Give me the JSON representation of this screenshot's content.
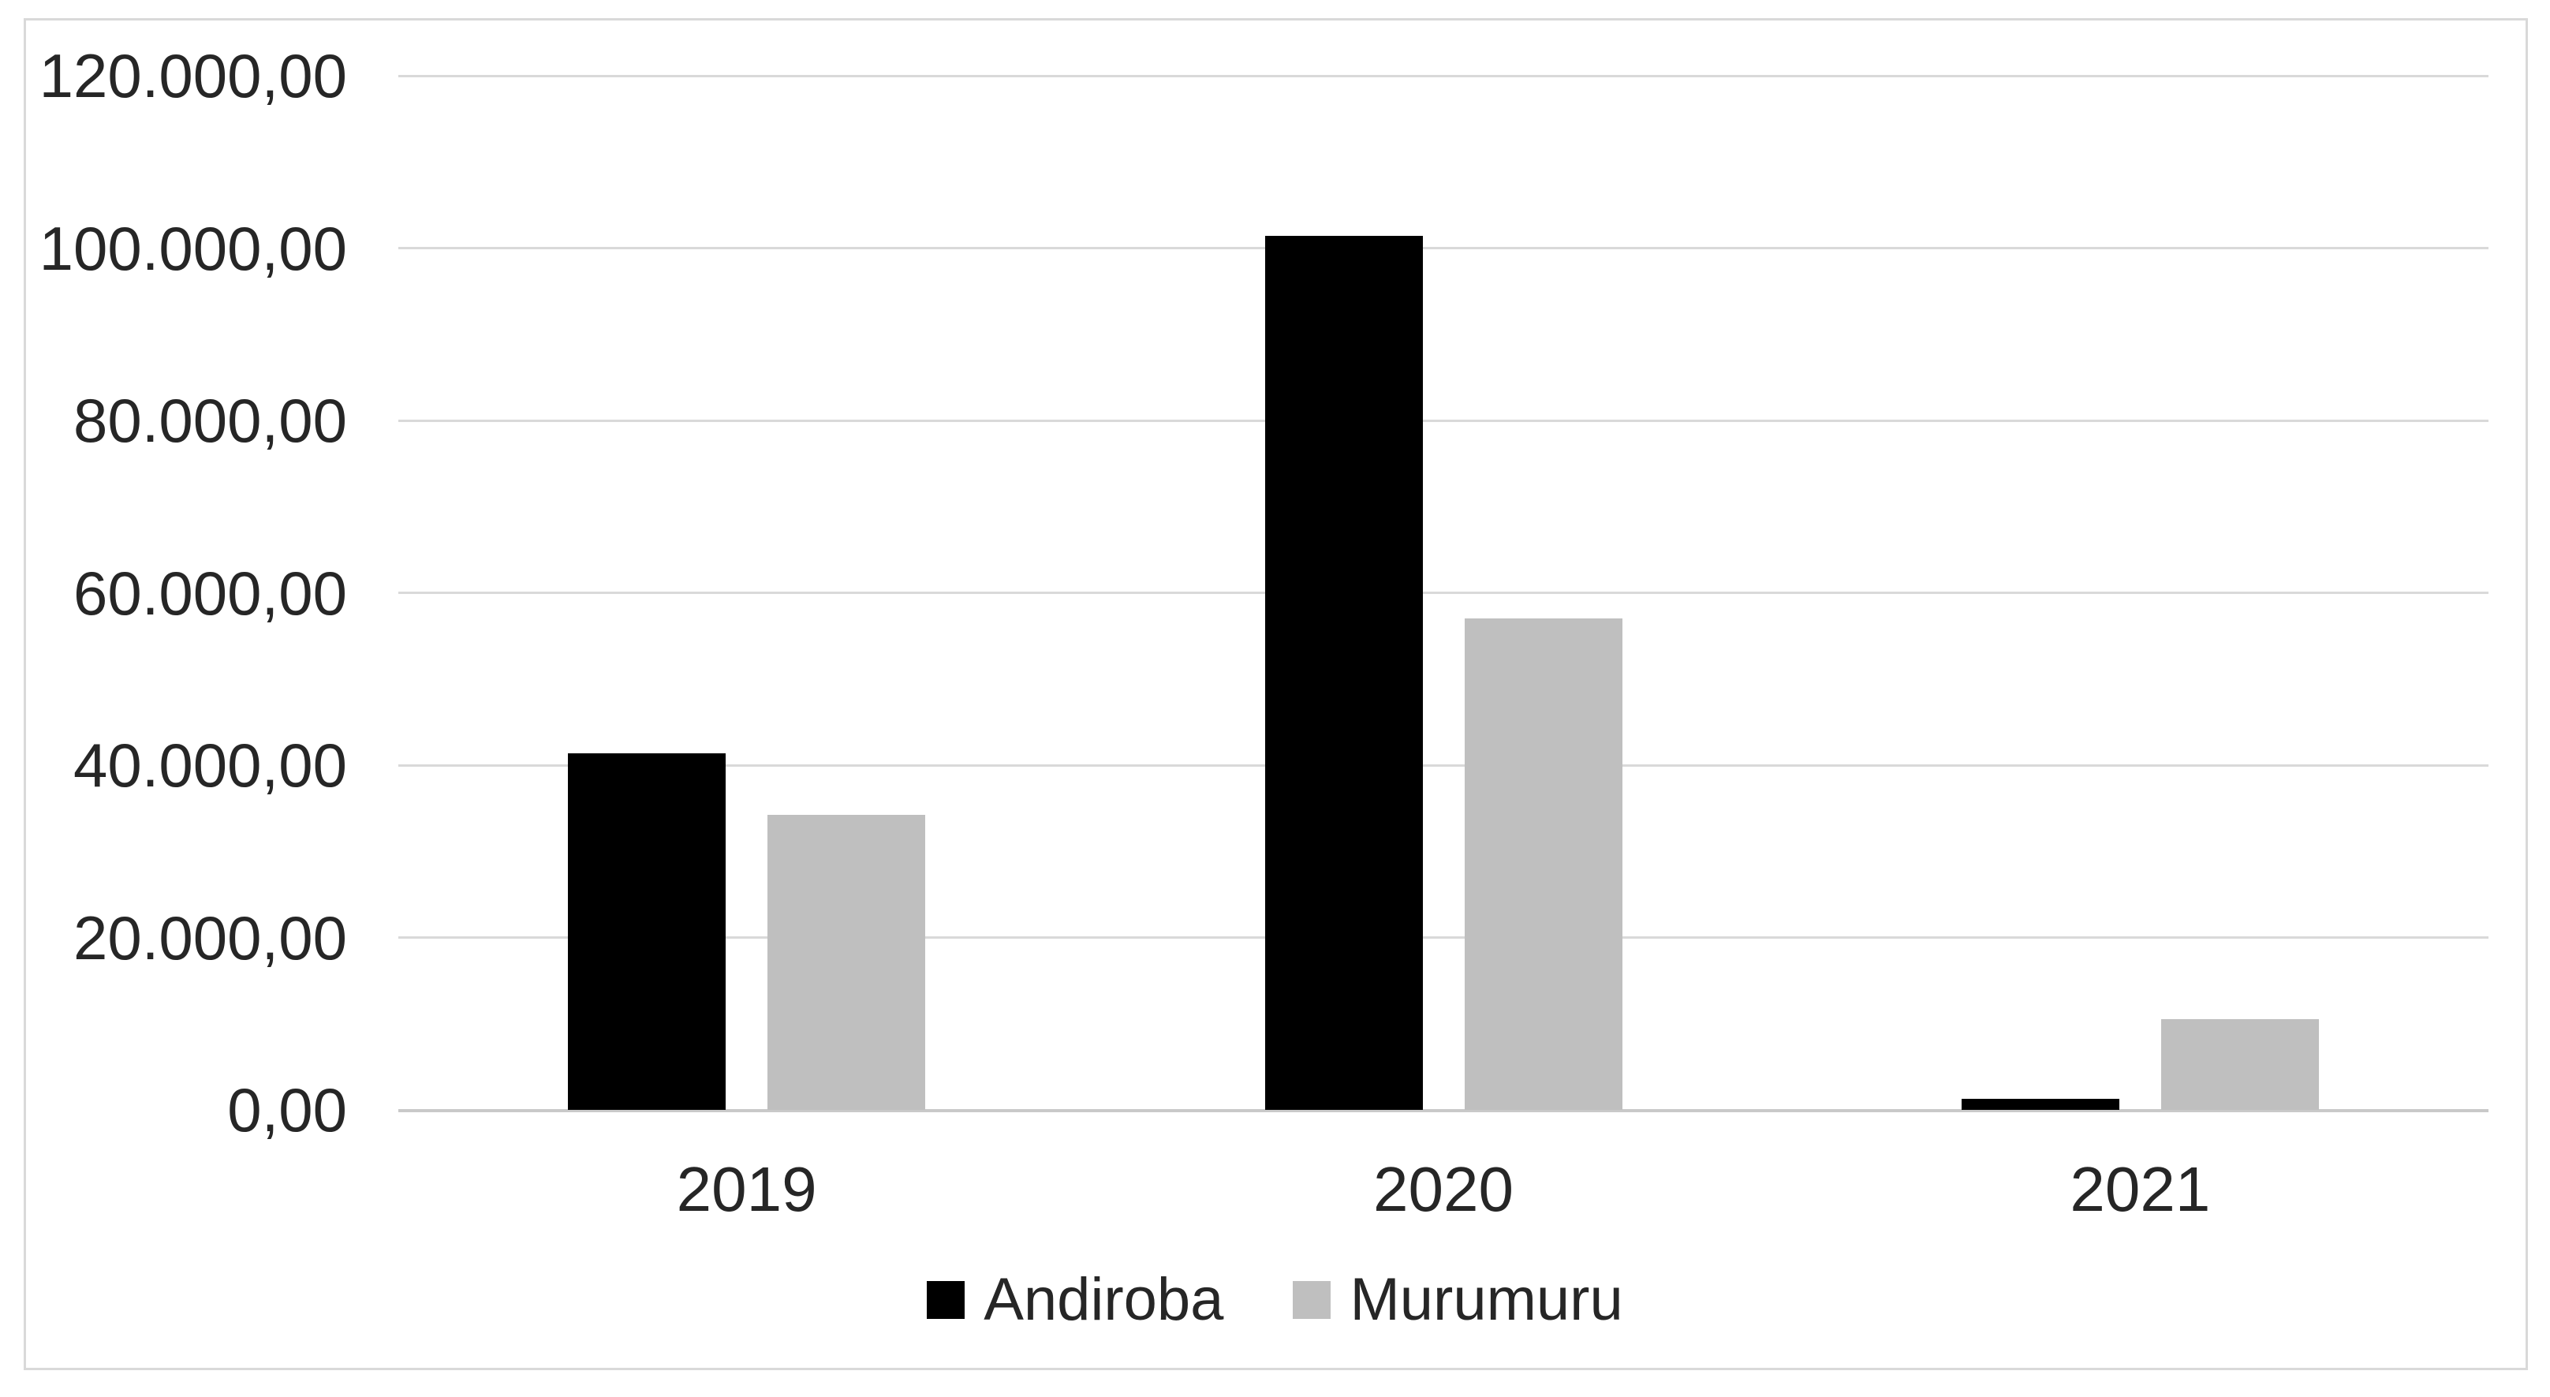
{
  "chart_data": {
    "type": "bar",
    "title": "",
    "xlabel": "",
    "ylabel": "",
    "categories": [
      "2019",
      "2020",
      "2021"
    ],
    "series": [
      {
        "name": "Andiroba",
        "color": "#000000",
        "values": [
          41400,
          101400,
          1300
        ]
      },
      {
        "name": "Murumuru",
        "color": "#BFBFBF",
        "values": [
          34200,
          57000,
          10500
        ]
      }
    ],
    "y_ticks": [
      {
        "value": 120000,
        "label": "120.000,00"
      },
      {
        "value": 100000,
        "label": "100.000,00"
      },
      {
        "value": 80000,
        "label": "80.000,00"
      },
      {
        "value": 60000,
        "label": "60.000,00"
      },
      {
        "value": 40000,
        "label": "40.000,00"
      },
      {
        "value": 20000,
        "label": "20.000,00"
      },
      {
        "value": 0,
        "label": "0,00"
      }
    ],
    "ylim": [
      0,
      120000
    ],
    "grid": true,
    "legend_position": "bottom",
    "number_format": "pt-BR"
  },
  "style": {
    "background": "#FFFFFF",
    "frame_border": "#D9D9D9",
    "gridline": "#D9D9D9",
    "axis_line": "#C9C9C9",
    "text": "#262626"
  }
}
